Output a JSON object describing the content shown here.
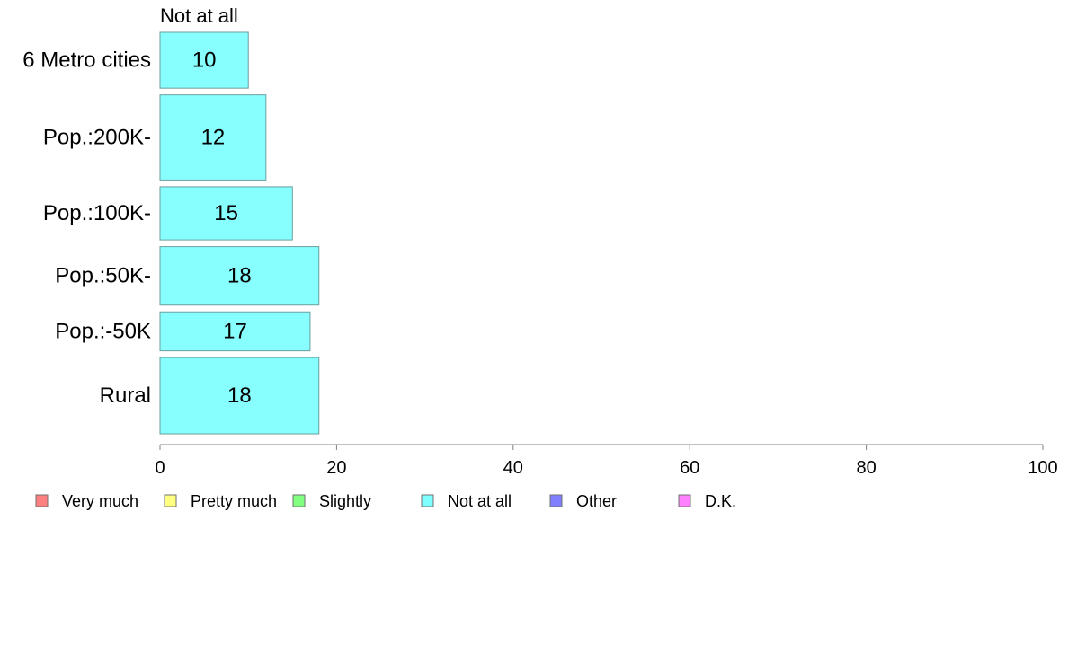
{
  "chart_data": {
    "type": "bar",
    "orientation": "horizontal",
    "stacked": true,
    "categories": [
      "6 Metro cities",
      "Pop.:200K-",
      "Pop.:100K-",
      "Pop.:50K-",
      "Pop.:-50K",
      "Rural"
    ],
    "shown_series": "Not at all",
    "series": [
      {
        "name": "Not at all",
        "values": [
          10,
          12,
          15,
          18,
          17,
          18
        ]
      }
    ],
    "category_weights": [
      63,
      96,
      60,
      66,
      44,
      86
    ],
    "xlim": [
      0,
      100
    ],
    "xticks": [
      0,
      20,
      40,
      60,
      80,
      100
    ],
    "xlabel": "",
    "ylabel": "",
    "grid": false,
    "legend": {
      "position": "bottom",
      "entries": [
        {
          "label": "Very much",
          "color": "#ff8080"
        },
        {
          "label": "Pretty much",
          "color": "#ffff80"
        },
        {
          "label": "Slightly",
          "color": "#80ff80"
        },
        {
          "label": "Not at all",
          "color": "#80ffff"
        },
        {
          "label": "Other",
          "color": "#8080ff"
        },
        {
          "label": "D.K.",
          "color": "#ff80ff"
        }
      ]
    },
    "bar_color": "#88ffff",
    "bar_stroke": "#6a9e9e",
    "axis_color": "#808080"
  }
}
